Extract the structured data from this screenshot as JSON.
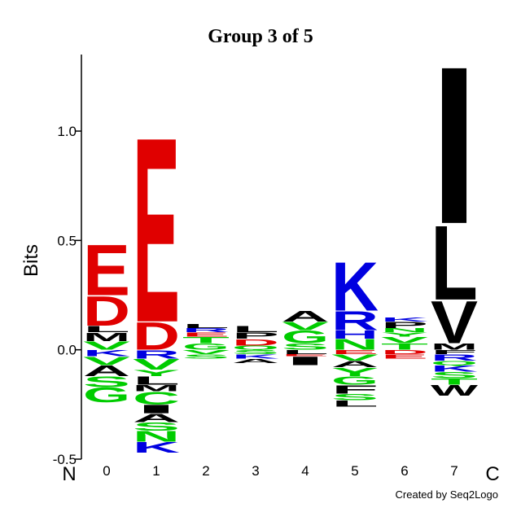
{
  "chart_data": {
    "type": "logo",
    "title": "Group 3 of 5",
    "y_label": "Bits",
    "footer": "Created by Seq2Logo",
    "start_label": "N",
    "end_label": "C",
    "categories": [
      "0",
      "1",
      "2",
      "3",
      "4",
      "5",
      "6",
      "7"
    ],
    "ylim": [
      -0.5,
      1.35
    ],
    "yticks": [
      -0.5,
      {
        "value": 0,
        "label": "0.0"
      },
      0.5,
      {
        "value": 1,
        "label": "1.0"
      }
    ],
    "stacks": [
      {
        "positive": [
          {
            "letter": "V",
            "color": "#00cc00",
            "value": 0.04
          },
          {
            "letter": "M",
            "color": "#000000",
            "value": 0.04
          },
          {
            "letter": "L",
            "color": "#000000",
            "value": 0.03
          },
          {
            "letter": "D",
            "color": "#e00000",
            "value": 0.14
          },
          {
            "letter": "E",
            "color": "#e00000",
            "value": 0.24
          }
        ],
        "negative": [
          {
            "letter": "K",
            "color": "#0000e0",
            "value": -0.03
          },
          {
            "letter": "V",
            "color": "#00cc00",
            "value": -0.04
          },
          {
            "letter": "A",
            "color": "#000000",
            "value": -0.05
          },
          {
            "letter": "S",
            "color": "#00cc00",
            "value": -0.05
          },
          {
            "letter": "G",
            "color": "#00cc00",
            "value": -0.07
          }
        ]
      },
      {
        "positive": [
          {
            "letter": "D",
            "color": "#e00000",
            "value": 0.13
          },
          {
            "letter": "E",
            "color": "#e00000",
            "value": 0.87
          }
        ],
        "negative": [
          {
            "letter": "R",
            "color": "#0000e0",
            "value": -0.04
          },
          {
            "letter": "V",
            "color": "#00cc00",
            "value": -0.05
          },
          {
            "letter": "Y",
            "color": "#00cc00",
            "value": -0.03
          },
          {
            "letter": "L",
            "color": "#000000",
            "value": -0.04
          },
          {
            "letter": "M",
            "color": "#000000",
            "value": -0.03
          },
          {
            "letter": "C",
            "color": "#00cc00",
            "value": -0.06
          },
          {
            "letter": "I",
            "color": "#000000",
            "value": -0.04
          },
          {
            "letter": "A",
            "color": "#000000",
            "value": -0.04
          },
          {
            "letter": "S",
            "color": "#00cc00",
            "value": -0.04
          },
          {
            "letter": "N",
            "color": "#00cc00",
            "value": -0.05
          },
          {
            "letter": "K",
            "color": "#0000e0",
            "value": -0.05
          }
        ]
      },
      {
        "positive": [
          {
            "letter": "G",
            "color": "#00cc00",
            "value": 0.03
          },
          {
            "letter": "T",
            "color": "#00cc00",
            "value": 0.03
          },
          {
            "letter": "E",
            "color": "#e00000",
            "value": 0.02
          },
          {
            "letter": "R",
            "color": "#0000e0",
            "value": 0.02
          },
          {
            "letter": "L",
            "color": "#000000",
            "value": 0.02
          }
        ],
        "negative": [
          {
            "letter": "V",
            "color": "#00cc00",
            "value": -0.02
          },
          {
            "letter": "S",
            "color": "#00cc00",
            "value": -0.02
          }
        ]
      },
      {
        "positive": [
          {
            "letter": "Q",
            "color": "#00cc00",
            "value": 0.02
          },
          {
            "letter": "D",
            "color": "#e00000",
            "value": 0.03
          },
          {
            "letter": "P",
            "color": "#000000",
            "value": 0.03
          },
          {
            "letter": "L",
            "color": "#000000",
            "value": 0.03
          }
        ],
        "negative": [
          {
            "letter": "S",
            "color": "#00cc00",
            "value": -0.02
          },
          {
            "letter": "K",
            "color": "#0000e0",
            "value": -0.02
          },
          {
            "letter": "A",
            "color": "#000000",
            "value": -0.02
          }
        ]
      },
      {
        "positive": [
          {
            "letter": "S",
            "color": "#00cc00",
            "value": 0.03
          },
          {
            "letter": "G",
            "color": "#00cc00",
            "value": 0.06
          },
          {
            "letter": "V",
            "color": "#00cc00",
            "value": 0.04
          },
          {
            "letter": "A",
            "color": "#000000",
            "value": 0.05
          }
        ],
        "negative": [
          {
            "letter": "L",
            "color": "#000000",
            "value": -0.02
          },
          {
            "letter": "E",
            "color": "#e00000",
            "value": -0.01
          },
          {
            "letter": "I",
            "color": "#000000",
            "value": -0.04
          }
        ]
      },
      {
        "positive": [
          {
            "letter": "N",
            "color": "#00cc00",
            "value": 0.05
          },
          {
            "letter": "H",
            "color": "#0000e0",
            "value": 0.04
          },
          {
            "letter": "R",
            "color": "#0000e0",
            "value": 0.09
          },
          {
            "letter": "K",
            "color": "#0000e0",
            "value": 0.23
          }
        ],
        "negative": [
          {
            "letter": "E",
            "color": "#e00000",
            "value": -0.02
          },
          {
            "letter": "V",
            "color": "#00cc00",
            "value": -0.03
          },
          {
            "letter": "A",
            "color": "#000000",
            "value": -0.03
          },
          {
            "letter": "Y",
            "color": "#00cc00",
            "value": -0.04
          },
          {
            "letter": "G",
            "color": "#00cc00",
            "value": -0.04
          },
          {
            "letter": "F",
            "color": "#000000",
            "value": -0.04
          },
          {
            "letter": "S",
            "color": "#00cc00",
            "value": -0.03
          },
          {
            "letter": "L",
            "color": "#000000",
            "value": -0.03
          }
        ]
      },
      {
        "positive": [
          {
            "letter": "T",
            "color": "#00cc00",
            "value": 0.03
          },
          {
            "letter": "V",
            "color": "#00cc00",
            "value": 0.03
          },
          {
            "letter": "Y",
            "color": "#00cc00",
            "value": 0.02
          },
          {
            "letter": "N",
            "color": "#00cc00",
            "value": 0.02
          },
          {
            "letter": "P",
            "color": "#000000",
            "value": 0.03
          },
          {
            "letter": "K",
            "color": "#0000e0",
            "value": 0.02
          }
        ],
        "negative": [
          {
            "letter": "D",
            "color": "#e00000",
            "value": -0.02
          },
          {
            "letter": "E",
            "color": "#e00000",
            "value": -0.02
          }
        ]
      },
      {
        "positive": [
          {
            "letter": "M",
            "color": "#000000",
            "value": 0.03
          },
          {
            "letter": "V",
            "color": "#000000",
            "value": 0.2
          },
          {
            "letter": "L",
            "color": "#000000",
            "value": 0.35
          },
          {
            "letter": "I",
            "color": "#000000",
            "value": 0.74
          }
        ],
        "negative": [
          {
            "letter": "F",
            "color": "#000000",
            "value": -0.02
          },
          {
            "letter": "R",
            "color": "#0000e0",
            "value": -0.03
          },
          {
            "letter": "Q",
            "color": "#00cc00",
            "value": -0.02
          },
          {
            "letter": "K",
            "color": "#0000e0",
            "value": -0.03
          },
          {
            "letter": "S",
            "color": "#00cc00",
            "value": -0.03
          },
          {
            "letter": "T",
            "color": "#00cc00",
            "value": -0.03
          },
          {
            "letter": "W",
            "color": "#000000",
            "value": -0.05
          }
        ]
      }
    ]
  }
}
